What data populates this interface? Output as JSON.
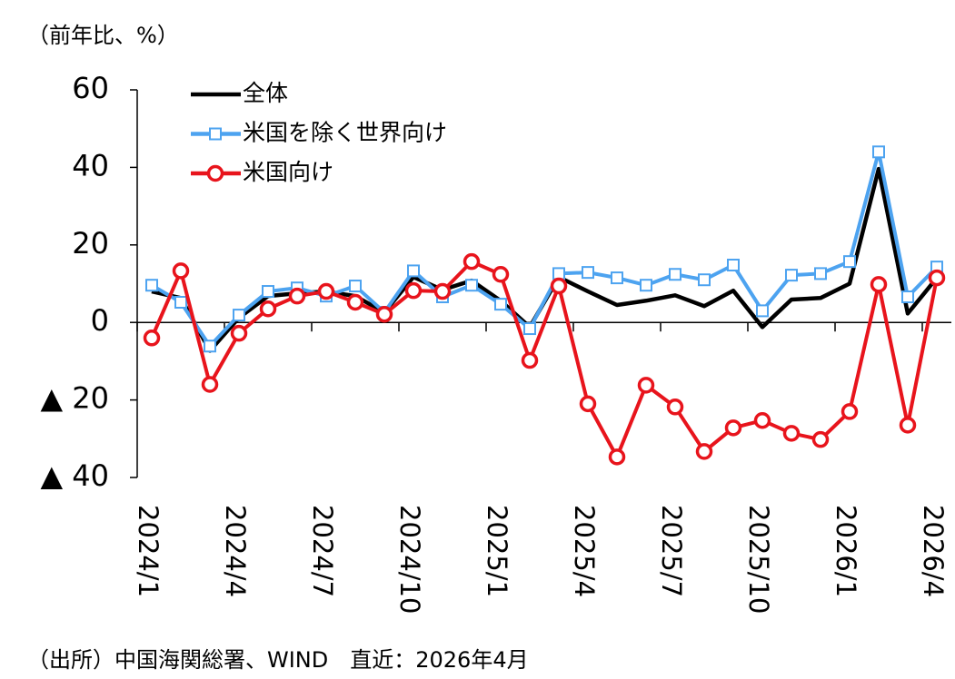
{
  "chart_data": {
    "type": "line",
    "ylabel": "（前年比、%）",
    "footnote": "（出所）中国海関総署、WIND　直近：2026年4月",
    "categories": [
      "2024/1",
      null,
      null,
      "2024/4",
      null,
      null,
      "2024/7",
      null,
      null,
      "2024/10",
      null,
      null,
      "2025/1",
      null,
      null,
      "2025/4",
      null,
      null,
      "2025/7",
      null,
      null,
      "2025/10",
      null,
      null,
      "2026/1",
      null,
      null,
      "2026/4"
    ],
    "series": [
      {
        "name": "全体",
        "color": "#000000",
        "marker": null,
        "values": [
          8,
          6.3,
          -7.3,
          1.2,
          6.8,
          7.5,
          8,
          6.8,
          2.6,
          11.7,
          8.4,
          10.8,
          5.6,
          -1.2,
          11.7,
          8,
          4.5,
          5.6,
          7,
          4.2,
          8.2,
          -1.2,
          5.9,
          6.3,
          10,
          39.6,
          2.3,
          11.5
        ]
      },
      {
        "name": "米国を除く世界向け",
        "color": "#4da3f0",
        "marker": "square",
        "values": [
          9.6,
          5.2,
          -6.1,
          1.9,
          8,
          8.9,
          6.8,
          9.4,
          2.6,
          13.3,
          6.6,
          9.6,
          4.7,
          -1.6,
          12.6,
          12.9,
          11.5,
          9.6,
          12.4,
          11,
          14.8,
          3,
          12.2,
          12.6,
          15.7,
          44,
          6.6,
          14.3
        ]
      },
      {
        "name": "米国向け",
        "color": "#e8141c",
        "marker": "circle",
        "values": [
          -4,
          13.3,
          -16,
          -2.8,
          3.5,
          6.8,
          8,
          5.2,
          2.1,
          8.2,
          8,
          15.7,
          12.4,
          -9.8,
          9.4,
          -21,
          -34.7,
          -16.2,
          -21.8,
          -33.3,
          -27.2,
          -25.3,
          -28.6,
          -30.2,
          -23,
          9.8,
          -26.5,
          11.5
        ]
      }
    ],
    "ylim": [
      -40,
      60
    ],
    "yticks": [
      60,
      40,
      20,
      0,
      {
        "value": -20,
        "label": "▲ 20"
      },
      {
        "value": -40,
        "label": "▲ 40"
      }
    ],
    "grid": false,
    "legend": "upper left"
  }
}
